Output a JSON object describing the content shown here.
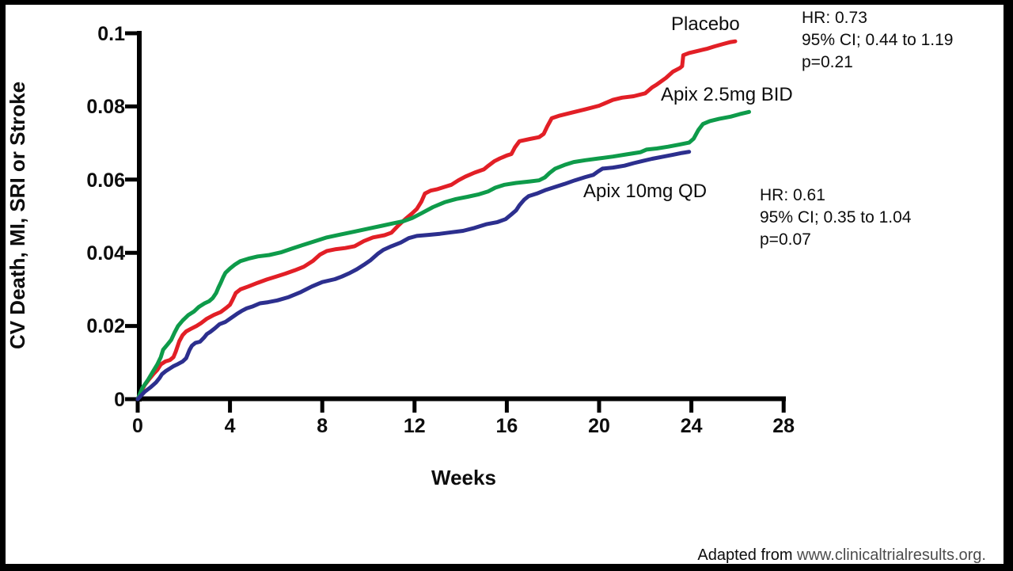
{
  "figure": {
    "source_prefix": "Adapted from ",
    "source_url": "www.clinicaltrialresults.org."
  },
  "chart_data": {
    "type": "line",
    "title": "",
    "xlabel": "Weeks",
    "ylabel": "CV Death, MI, SRI or Stroke",
    "xlim": [
      0,
      28
    ],
    "ylim": [
      0,
      0.1
    ],
    "grid": false,
    "legend_position": "inline-curve-labels",
    "x_ticks": [
      "0",
      "4",
      "8",
      "12",
      "16",
      "20",
      "24",
      "28"
    ],
    "y_ticks": [
      "0.1",
      "0.08",
      "0.06",
      "0.04",
      "0.02",
      "0"
    ],
    "series": [
      {
        "name": "Placebo",
        "color": "#e21f26",
        "points": [
          [
            0,
            0
          ],
          [
            0.15,
            0.002
          ],
          [
            0.3,
            0.0038
          ],
          [
            0.5,
            0.0055
          ],
          [
            0.7,
            0.007
          ],
          [
            0.85,
            0.008
          ],
          [
            1.0,
            0.0095
          ],
          [
            1.2,
            0.0103
          ],
          [
            1.4,
            0.0107
          ],
          [
            1.55,
            0.0115
          ],
          [
            1.65,
            0.013
          ],
          [
            1.8,
            0.0158
          ],
          [
            1.95,
            0.0175
          ],
          [
            2.1,
            0.0185
          ],
          [
            2.3,
            0.0192
          ],
          [
            2.55,
            0.02
          ],
          [
            2.75,
            0.0208
          ],
          [
            3.0,
            0.022
          ],
          [
            3.3,
            0.023
          ],
          [
            3.6,
            0.0238
          ],
          [
            3.85,
            0.025
          ],
          [
            4.0,
            0.0258
          ],
          [
            4.1,
            0.027
          ],
          [
            4.25,
            0.029
          ],
          [
            4.45,
            0.03
          ],
          [
            4.8,
            0.0308
          ],
          [
            5.2,
            0.0318
          ],
          [
            5.6,
            0.0327
          ],
          [
            6.0,
            0.0335
          ],
          [
            6.4,
            0.0343
          ],
          [
            6.8,
            0.0352
          ],
          [
            7.2,
            0.0362
          ],
          [
            7.6,
            0.0378
          ],
          [
            7.9,
            0.0395
          ],
          [
            8.2,
            0.0405
          ],
          [
            8.6,
            0.041
          ],
          [
            9.0,
            0.0413
          ],
          [
            9.4,
            0.0418
          ],
          [
            9.8,
            0.0432
          ],
          [
            10.2,
            0.0442
          ],
          [
            10.7,
            0.0448
          ],
          [
            11.0,
            0.0455
          ],
          [
            11.3,
            0.0475
          ],
          [
            11.6,
            0.0492
          ],
          [
            11.9,
            0.0508
          ],
          [
            12.1,
            0.052
          ],
          [
            12.3,
            0.054
          ],
          [
            12.45,
            0.0562
          ],
          [
            12.7,
            0.057
          ],
          [
            13.0,
            0.0574
          ],
          [
            13.3,
            0.058
          ],
          [
            13.6,
            0.0586
          ],
          [
            13.9,
            0.0598
          ],
          [
            14.2,
            0.0608
          ],
          [
            14.6,
            0.0619
          ],
          [
            15.0,
            0.0628
          ],
          [
            15.2,
            0.0638
          ],
          [
            15.45,
            0.065
          ],
          [
            15.7,
            0.0658
          ],
          [
            16.0,
            0.0666
          ],
          [
            16.2,
            0.067
          ],
          [
            16.35,
            0.0688
          ],
          [
            16.55,
            0.0705
          ],
          [
            17.0,
            0.0711
          ],
          [
            17.4,
            0.0716
          ],
          [
            17.6,
            0.0725
          ],
          [
            17.75,
            0.0745
          ],
          [
            17.95,
            0.0768
          ],
          [
            18.3,
            0.0775
          ],
          [
            18.8,
            0.0783
          ],
          [
            19.4,
            0.0792
          ],
          [
            20.0,
            0.0802
          ],
          [
            20.6,
            0.0818
          ],
          [
            21.0,
            0.0824
          ],
          [
            21.5,
            0.0828
          ],
          [
            22.0,
            0.0836
          ],
          [
            22.3,
            0.0852
          ],
          [
            22.5,
            0.086
          ],
          [
            22.9,
            0.0878
          ],
          [
            23.2,
            0.0895
          ],
          [
            23.5,
            0.0905
          ],
          [
            23.6,
            0.091
          ],
          [
            23.65,
            0.094
          ],
          [
            23.9,
            0.0946
          ],
          [
            24.3,
            0.0952
          ],
          [
            24.7,
            0.0958
          ],
          [
            25.0,
            0.0964
          ],
          [
            25.4,
            0.0971
          ],
          [
            25.7,
            0.0976
          ],
          [
            25.9,
            0.0978
          ]
        ]
      },
      {
        "name": "Apix 2.5mg BID",
        "color": "#0e9b4a",
        "points": [
          [
            0,
            0
          ],
          [
            0.2,
            0.003
          ],
          [
            0.45,
            0.0053
          ],
          [
            0.65,
            0.0074
          ],
          [
            0.85,
            0.0095
          ],
          [
            1.0,
            0.0115
          ],
          [
            1.1,
            0.0135
          ],
          [
            1.3,
            0.015
          ],
          [
            1.45,
            0.0162
          ],
          [
            1.6,
            0.0182
          ],
          [
            1.75,
            0.02
          ],
          [
            1.95,
            0.0215
          ],
          [
            2.2,
            0.023
          ],
          [
            2.45,
            0.024
          ],
          [
            2.65,
            0.0252
          ],
          [
            2.9,
            0.0262
          ],
          [
            3.1,
            0.0268
          ],
          [
            3.25,
            0.0276
          ],
          [
            3.4,
            0.029
          ],
          [
            3.5,
            0.0305
          ],
          [
            3.6,
            0.0318
          ],
          [
            3.7,
            0.0333
          ],
          [
            3.8,
            0.0345
          ],
          [
            4.0,
            0.0357
          ],
          [
            4.2,
            0.0367
          ],
          [
            4.45,
            0.0377
          ],
          [
            4.8,
            0.0384
          ],
          [
            5.2,
            0.039
          ],
          [
            5.7,
            0.0394
          ],
          [
            6.2,
            0.0401
          ],
          [
            6.7,
            0.0412
          ],
          [
            7.2,
            0.0422
          ],
          [
            7.7,
            0.0432
          ],
          [
            8.2,
            0.0442
          ],
          [
            8.8,
            0.045
          ],
          [
            9.4,
            0.0458
          ],
          [
            10.0,
            0.0466
          ],
          [
            10.6,
            0.0474
          ],
          [
            11.1,
            0.0481
          ],
          [
            11.5,
            0.0486
          ],
          [
            11.9,
            0.0495
          ],
          [
            12.3,
            0.0508
          ],
          [
            12.8,
            0.0525
          ],
          [
            13.3,
            0.0538
          ],
          [
            13.8,
            0.0547
          ],
          [
            14.3,
            0.0553
          ],
          [
            14.8,
            0.056
          ],
          [
            15.2,
            0.0568
          ],
          [
            15.5,
            0.0578
          ],
          [
            15.9,
            0.0586
          ],
          [
            16.4,
            0.0591
          ],
          [
            17.0,
            0.0595
          ],
          [
            17.4,
            0.0598
          ],
          [
            17.65,
            0.0606
          ],
          [
            17.85,
            0.0618
          ],
          [
            18.1,
            0.063
          ],
          [
            18.5,
            0.064
          ],
          [
            18.9,
            0.0648
          ],
          [
            19.4,
            0.0653
          ],
          [
            20.0,
            0.0658
          ],
          [
            20.6,
            0.0663
          ],
          [
            21.2,
            0.0669
          ],
          [
            21.8,
            0.0675
          ],
          [
            22.05,
            0.0682
          ],
          [
            22.5,
            0.0685
          ],
          [
            23.0,
            0.069
          ],
          [
            23.5,
            0.0696
          ],
          [
            23.9,
            0.0701
          ],
          [
            24.1,
            0.0712
          ],
          [
            24.3,
            0.0735
          ],
          [
            24.5,
            0.0752
          ],
          [
            24.8,
            0.076
          ],
          [
            25.2,
            0.0766
          ],
          [
            25.7,
            0.0772
          ],
          [
            26.1,
            0.0779
          ],
          [
            26.5,
            0.0785
          ]
        ]
      },
      {
        "name": "Apix 10mg QD",
        "color": "#2c2f8e",
        "points": [
          [
            0,
            0
          ],
          [
            0.3,
            0.002
          ],
          [
            0.55,
            0.0032
          ],
          [
            0.8,
            0.0046
          ],
          [
            0.95,
            0.0058
          ],
          [
            1.05,
            0.0068
          ],
          [
            1.2,
            0.0076
          ],
          [
            1.4,
            0.0084
          ],
          [
            1.55,
            0.009
          ],
          [
            1.75,
            0.0096
          ],
          [
            1.95,
            0.0103
          ],
          [
            2.1,
            0.0112
          ],
          [
            2.18,
            0.0124
          ],
          [
            2.25,
            0.0135
          ],
          [
            2.35,
            0.0146
          ],
          [
            2.5,
            0.0154
          ],
          [
            2.7,
            0.0157
          ],
          [
            2.87,
            0.0168
          ],
          [
            3.0,
            0.0178
          ],
          [
            3.15,
            0.0184
          ],
          [
            3.35,
            0.0194
          ],
          [
            3.55,
            0.0205
          ],
          [
            3.8,
            0.0211
          ],
          [
            4.05,
            0.0222
          ],
          [
            4.3,
            0.0233
          ],
          [
            4.5,
            0.0241
          ],
          [
            4.72,
            0.0248
          ],
          [
            5.0,
            0.0254
          ],
          [
            5.3,
            0.0262
          ],
          [
            5.65,
            0.0265
          ],
          [
            6.05,
            0.027
          ],
          [
            6.55,
            0.0279
          ],
          [
            7.05,
            0.0292
          ],
          [
            7.55,
            0.0308
          ],
          [
            8.0,
            0.032
          ],
          [
            8.55,
            0.0328
          ],
          [
            8.85,
            0.0335
          ],
          [
            9.2,
            0.0345
          ],
          [
            9.5,
            0.0355
          ],
          [
            9.8,
            0.0367
          ],
          [
            10.1,
            0.038
          ],
          [
            10.4,
            0.0397
          ],
          [
            10.65,
            0.0408
          ],
          [
            11.0,
            0.0418
          ],
          [
            11.4,
            0.0428
          ],
          [
            11.75,
            0.044
          ],
          [
            12.1,
            0.0446
          ],
          [
            12.6,
            0.0449
          ],
          [
            13.1,
            0.0452
          ],
          [
            13.6,
            0.0456
          ],
          [
            14.1,
            0.046
          ],
          [
            14.6,
            0.0468
          ],
          [
            15.1,
            0.0478
          ],
          [
            15.6,
            0.0484
          ],
          [
            15.95,
            0.0492
          ],
          [
            16.2,
            0.0505
          ],
          [
            16.4,
            0.0516
          ],
          [
            16.55,
            0.053
          ],
          [
            16.75,
            0.0545
          ],
          [
            16.95,
            0.0555
          ],
          [
            17.3,
            0.0562
          ],
          [
            17.7,
            0.0572
          ],
          [
            18.1,
            0.058
          ],
          [
            18.5,
            0.0588
          ],
          [
            18.95,
            0.0598
          ],
          [
            19.4,
            0.0607
          ],
          [
            19.75,
            0.0613
          ],
          [
            19.95,
            0.0622
          ],
          [
            20.15,
            0.063
          ],
          [
            20.6,
            0.0633
          ],
          [
            21.1,
            0.0638
          ],
          [
            21.5,
            0.0645
          ],
          [
            21.9,
            0.0651
          ],
          [
            22.3,
            0.0657
          ],
          [
            22.8,
            0.0663
          ],
          [
            23.2,
            0.0668
          ],
          [
            23.6,
            0.0673
          ],
          [
            23.9,
            0.0676
          ]
        ]
      }
    ],
    "annotations": [
      {
        "for_series": "Placebo",
        "lines": [
          "HR: 0.73",
          "95% CI; 0.44 to 1.19",
          "p=0.21"
        ]
      },
      {
        "for_series": "Apix 10mg QD",
        "lines": [
          "HR: 0.61",
          "95% CI; 0.35 to 1.04",
          "p=0.07"
        ]
      }
    ]
  }
}
